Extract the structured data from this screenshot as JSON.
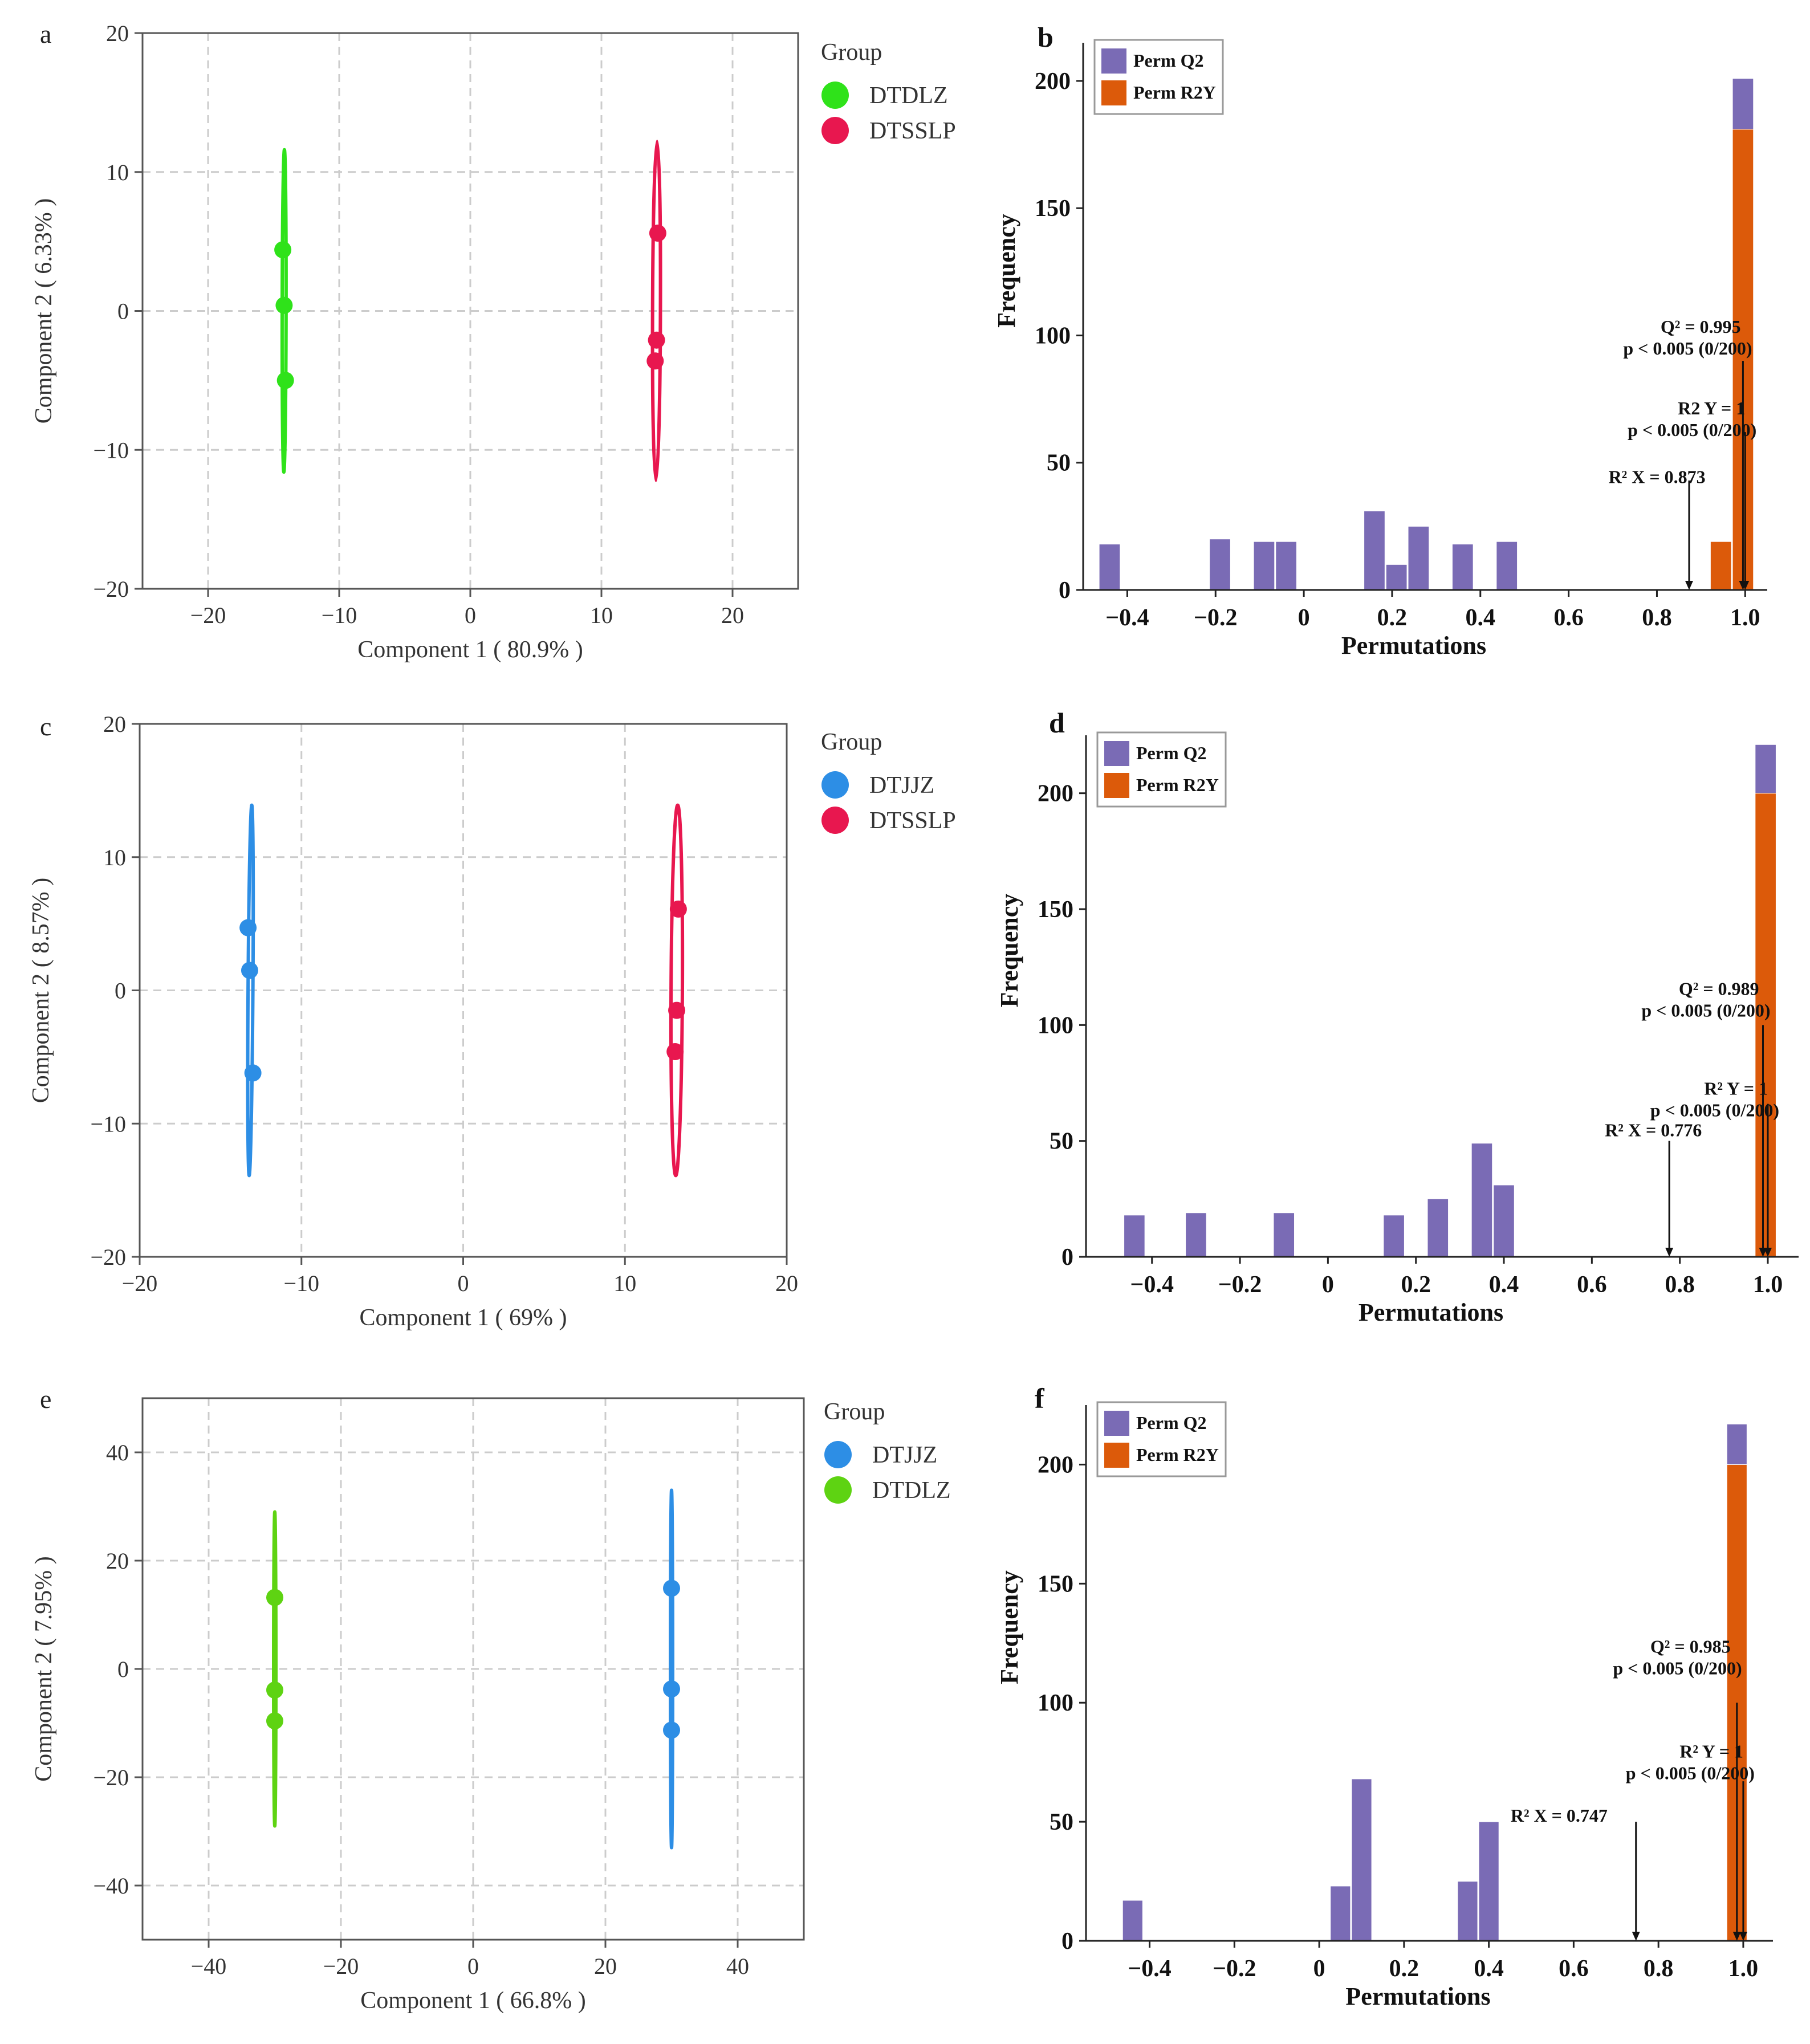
{
  "colors": {
    "DTSSLP": "#e8174f",
    "DTDLZ_a": "#2fe21a",
    "DTDLZ_e": "#5ed312",
    "DTJJZ": "#2d8ee5",
    "perm_q2": "#7a6bb5",
    "perm_r2y": "#dc5a0a",
    "grid": "#cccccc",
    "axis": "#333333"
  },
  "chart_data": [
    {
      "panel": "a",
      "type": "scatter",
      "xlabel": "Component 1 ( 80.9% )",
      "ylabel": "Component 2 ( 6.33% )",
      "xlim": [
        -25,
        25
      ],
      "ylim": [
        -20,
        20
      ],
      "xticks": [
        -20,
        -10,
        0,
        10,
        20
      ],
      "yticks": [
        -20,
        -10,
        0,
        10,
        20
      ],
      "xtick_labels": [
        "−20",
        "−10",
        "0",
        "10",
        "20"
      ],
      "ytick_labels": [
        "−20",
        "−10",
        "0",
        "10",
        "20"
      ],
      "legend_title": "Group",
      "series": [
        {
          "name": "DTSSLP",
          "color_key": "DTSSLP",
          "x": [
            14.3,
            14.2,
            14.1
          ],
          "y": [
            5.6,
            -2.1,
            -3.6
          ],
          "ellipse": {
            "cx": 14.2,
            "cy": 0,
            "rx": 0.3,
            "ry": 12.2,
            "tilt": 0.2
          }
        },
        {
          "name": "DTDLZ",
          "color_key": "DTDLZ_a",
          "x": [
            -14.3,
            -14.2,
            -14.1
          ],
          "y": [
            4.4,
            0.4,
            -5.0
          ],
          "ellipse": {
            "cx": -14.2,
            "cy": 0,
            "rx": 0.15,
            "ry": 11.6,
            "tilt": 0.1
          }
        }
      ]
    },
    {
      "panel": "b",
      "type": "bar",
      "xlabel": "Permutations",
      "ylabel": "Frequency",
      "xlim": [
        -0.5,
        1.05
      ],
      "ylim": [
        0,
        215
      ],
      "xticks": [
        -0.4,
        -0.2,
        0,
        0.2,
        0.4,
        0.6,
        0.8,
        1.0
      ],
      "xtick_labels": [
        "−0.4",
        "−0.2",
        "0",
        "0.2",
        "0.4",
        "0.6",
        "0.8",
        "1.0"
      ],
      "yticks": [
        0,
        50,
        100,
        150,
        200
      ],
      "ytick_labels": [
        "0",
        "50",
        "100",
        "150",
        "200"
      ],
      "bin_width": 0.05,
      "series": [
        {
          "name": "Perm Q2",
          "color_key": "perm_q2",
          "centers": [
            -0.44,
            -0.19,
            -0.09,
            -0.04,
            0.16,
            0.21,
            0.26,
            0.36,
            0.46,
            0.995
          ],
          "values": [
            18,
            20,
            19,
            19,
            31,
            10,
            25,
            18,
            19,
            201
          ]
        },
        {
          "name": "Perm R2Y",
          "color_key": "perm_r2y",
          "centers": [
            0.945,
            0.995
          ],
          "values": [
            19,
            181
          ]
        }
      ],
      "annotations": [
        {
          "line1": "Q² = 0.995",
          "line2": "p < 0.005 (0/200)",
          "arrow_x": 0.995,
          "arrow_top": 90,
          "text_x": 0.99,
          "text_y": 101
        },
        {
          "line1": "R2 Y = 1",
          "line2": "p < 0.005 (0/200)",
          "arrow_x": 1.0,
          "arrow_top": 62,
          "text_x": 1.0,
          "text_y": 69
        },
        {
          "line1": "R² X = 0.873",
          "line2": "",
          "arrow_x": 0.873,
          "arrow_top": 43,
          "text_x": 0.91,
          "text_y": 42
        }
      ]
    },
    {
      "panel": "c",
      "type": "scatter",
      "xlabel": "Component 1 ( 69% )",
      "ylabel": "Component 2 ( 8.57% )",
      "xlim": [
        -20,
        20
      ],
      "ylim": [
        -20,
        20
      ],
      "xticks": [
        -20,
        -10,
        0,
        10,
        20
      ],
      "yticks": [
        -20,
        -10,
        0,
        10,
        20
      ],
      "xtick_labels": [
        "−20",
        "−10",
        "0",
        "10",
        "20"
      ],
      "ytick_labels": [
        "−20",
        "−10",
        "0",
        "10",
        "20"
      ],
      "legend_title": "Group",
      "series": [
        {
          "name": "DTSSLP",
          "color_key": "DTSSLP",
          "x": [
            13.3,
            13.2,
            13.1
          ],
          "y": [
            6.1,
            -1.5,
            -4.6
          ],
          "ellipse": {
            "cx": 13.2,
            "cy": 0,
            "rx": 0.35,
            "ry": 13.9,
            "tilt": 0.3
          }
        },
        {
          "name": "DTJJZ",
          "color_key": "DTJJZ",
          "x": [
            -13.3,
            -13.2,
            -13.0
          ],
          "y": [
            4.7,
            1.5,
            -6.2
          ],
          "ellipse": {
            "cx": -13.15,
            "cy": 0,
            "rx": 0.15,
            "ry": 13.9,
            "tilt": 0.4
          }
        }
      ]
    },
    {
      "panel": "d",
      "type": "bar",
      "xlabel": "Permutations",
      "ylabel": "Frequency",
      "xlim": [
        -0.55,
        1.07
      ],
      "ylim": [
        0,
        225
      ],
      "xticks": [
        -0.4,
        -0.2,
        0,
        0.2,
        0.4,
        0.6,
        0.8,
        1.0
      ],
      "xtick_labels": [
        "−0.4",
        "−0.2",
        "0",
        "0.2",
        "0.4",
        "0.6",
        "0.8",
        "1.0"
      ],
      "yticks": [
        0,
        50,
        100,
        150,
        200
      ],
      "ytick_labels": [
        "0",
        "50",
        "100",
        "150",
        "200"
      ],
      "bin_width": 0.05,
      "series": [
        {
          "name": "Perm Q2",
          "color_key": "perm_q2",
          "centers": [
            -0.44,
            -0.3,
            -0.1,
            0.15,
            0.25,
            0.35,
            0.4,
            0.995
          ],
          "values": [
            18,
            19,
            19,
            18,
            25,
            49,
            31,
            221
          ]
        },
        {
          "name": "Perm R2Y",
          "color_key": "perm_r2y",
          "centers": [
            0.995
          ],
          "values": [
            200
          ]
        }
      ],
      "annotations": [
        {
          "line1": "Q² = 0.989",
          "line2": "p < 0.005 (0/200)",
          "arrow_x": 0.989,
          "arrow_top": 100,
          "text_x": 0.98,
          "text_y": 113
        },
        {
          "line1": "R² Y = 1",
          "line2": "p < 0.005 (0/200)",
          "arrow_x": 1.0,
          "arrow_top": 66,
          "text_x": 1.0,
          "text_y": 70
        },
        {
          "line1": "R² X = 0.776",
          "line2": "",
          "arrow_x": 0.776,
          "arrow_top": 50,
          "text_x": 0.85,
          "text_y": 52
        }
      ]
    },
    {
      "panel": "e",
      "type": "scatter",
      "xlabel": "Component 1 ( 66.8% )",
      "ylabel": "Component 2 ( 7.95% )",
      "xlim": [
        -50,
        50
      ],
      "ylim": [
        -50,
        50
      ],
      "xticks": [
        -40,
        -20,
        0,
        20,
        40
      ],
      "yticks": [
        -40,
        -20,
        0,
        20,
        40
      ],
      "xtick_labels": [
        "−40",
        "−20",
        "0",
        "20",
        "40"
      ],
      "ytick_labels": [
        "−40",
        "−20",
        "0",
        "20",
        "40"
      ],
      "legend_title": "Group",
      "series": [
        {
          "name": "DTDLZ",
          "color_key": "DTDLZ_e",
          "x": [
            -30,
            -30,
            -30
          ],
          "y": [
            13.2,
            -3.9,
            -9.6
          ],
          "ellipse": {
            "cx": -30,
            "cy": 0,
            "rx": 0.12,
            "ry": 29,
            "tilt": 0
          }
        },
        {
          "name": "DTJJZ",
          "color_key": "DTJJZ",
          "x": [
            30,
            30,
            30
          ],
          "y": [
            14.9,
            -3.7,
            -11.3
          ],
          "ellipse": {
            "cx": 30,
            "cy": 0,
            "rx": 0.12,
            "ry": 33,
            "tilt": 0
          }
        }
      ]
    },
    {
      "panel": "f",
      "type": "bar",
      "xlabel": "Permutations",
      "ylabel": "Frequency",
      "xlim": [
        -0.55,
        1.07
      ],
      "ylim": [
        0,
        225
      ],
      "xticks": [
        -0.4,
        -0.2,
        0,
        0.2,
        0.4,
        0.6,
        0.8,
        1.0
      ],
      "xtick_labels": [
        "−0.4",
        "−0.2",
        "0",
        "0.2",
        "0.4",
        "0.6",
        "0.8",
        "1.0"
      ],
      "yticks": [
        0,
        50,
        100,
        150,
        200
      ],
      "ytick_labels": [
        "0",
        "50",
        "100",
        "150",
        "200"
      ],
      "bin_width": 0.05,
      "series": [
        {
          "name": "Perm Q2",
          "color_key": "perm_q2",
          "centers": [
            -0.44,
            0.05,
            0.1,
            0.35,
            0.4,
            0.985
          ],
          "values": [
            17,
            23,
            68,
            25,
            50,
            217
          ]
        },
        {
          "name": "Perm R2Y",
          "color_key": "perm_r2y",
          "centers": [
            0.985
          ],
          "values": [
            200
          ]
        }
      ],
      "annotations": [
        {
          "line1": "Q² = 0.985",
          "line2": "p < 0.005 (0/200)",
          "arrow_x": 0.985,
          "arrow_top": 100,
          "text_x": 0.97,
          "text_y": 121
        },
        {
          "line1": "R² Y = 1",
          "line2": "p < 0.005 (0/200)",
          "arrow_x": 1.0,
          "arrow_top": 67,
          "text_x": 1.0,
          "text_y": 77
        },
        {
          "line1": "R² X = 0.747",
          "line2": "",
          "arrow_x": 0.747,
          "arrow_top": 50,
          "text_x": 0.68,
          "text_y": 50
        }
      ]
    }
  ]
}
